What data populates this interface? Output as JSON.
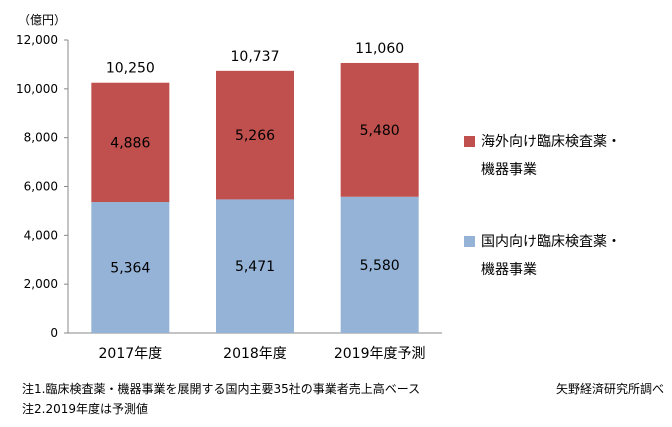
{
  "chart_data": {
    "type": "bar",
    "stacked": true,
    "unit_label": "（億円）",
    "categories": [
      "2017年度",
      "2018年度",
      "2019年度予測"
    ],
    "totals": [
      "10,250",
      "10,737",
      "11,060"
    ],
    "series": [
      {
        "name": "国内向け臨床検査薬・機器事業",
        "name_lines": [
          "国内向け臨床検査薬・",
          "機器事業"
        ],
        "color": "#95b3d7",
        "values": [
          5364,
          5471,
          5580
        ],
        "labels": [
          "5,364",
          "5,471",
          "5,580"
        ]
      },
      {
        "name": "海外向け臨床検査薬・機器事業",
        "name_lines": [
          "海外向け臨床検査薬・",
          "機器事業"
        ],
        "color": "#c0504d",
        "values": [
          4886,
          5266,
          5480
        ],
        "labels": [
          "4,886",
          "5,266",
          "5,480"
        ]
      }
    ],
    "yticks": [
      "0",
      "2,000",
      "4,000",
      "6,000",
      "8,000",
      "10,000",
      "12,000"
    ],
    "ylim": [
      0,
      12000
    ],
    "grid": false,
    "legend_position": "right"
  },
  "notes": [
    "注1.臨床検査薬・機器事業を展開する国内主要35社の事業者売上高ベース",
    "注2.2019年度は予測値"
  ],
  "source": "矢野経済研究所調べ"
}
